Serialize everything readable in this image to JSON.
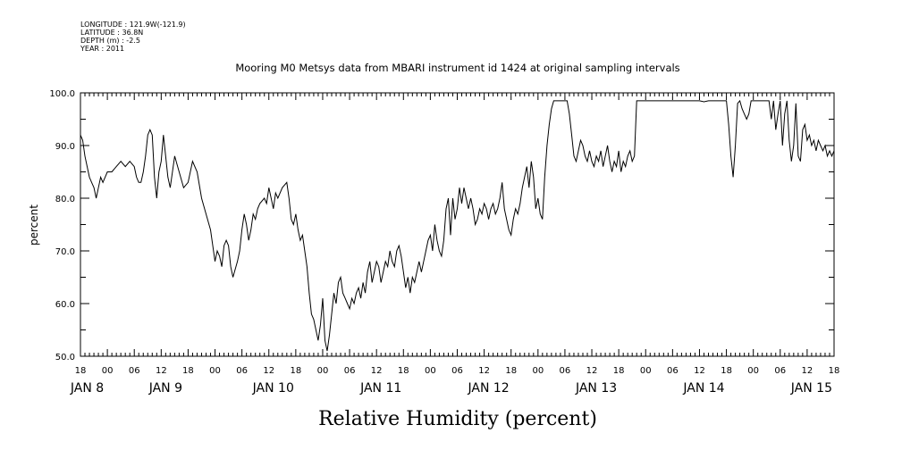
{
  "metadata": {
    "longitude": "LONGITUDE : 121.9W(-121.9)",
    "latitude": "LATITUDE : 36.8N",
    "depth": "DEPTH (m) : -2.5",
    "year": "YEAR : 2011"
  },
  "chart_data": {
    "type": "line",
    "title": "Mooring M0 Metsys data from MBARI instrument id 1424 at original sampling intervals",
    "footer_title": "Relative Humidity (percent)",
    "ylabel": "percent",
    "ylim": [
      50,
      100
    ],
    "y_ticks": [
      50,
      60,
      70,
      80,
      90,
      100
    ],
    "x_range_hours": [
      0,
      168
    ],
    "x_tick_labels": [
      {
        "t": 0,
        "label": "18"
      },
      {
        "t": 6,
        "label": "00"
      },
      {
        "t": 12,
        "label": "06"
      },
      {
        "t": 18,
        "label": "12"
      },
      {
        "t": 24,
        "label": "18"
      },
      {
        "t": 30,
        "label": "00"
      },
      {
        "t": 36,
        "label": "06"
      },
      {
        "t": 42,
        "label": "12"
      },
      {
        "t": 48,
        "label": "18"
      },
      {
        "t": 54,
        "label": "00"
      },
      {
        "t": 60,
        "label": "06"
      },
      {
        "t": 66,
        "label": "12"
      },
      {
        "t": 72,
        "label": "18"
      },
      {
        "t": 78,
        "label": "00"
      },
      {
        "t": 84,
        "label": "06"
      },
      {
        "t": 90,
        "label": "12"
      },
      {
        "t": 96,
        "label": "18"
      },
      {
        "t": 102,
        "label": "00"
      },
      {
        "t": 108,
        "label": "06"
      },
      {
        "t": 114,
        "label": "12"
      },
      {
        "t": 120,
        "label": "18"
      },
      {
        "t": 126,
        "label": "00"
      },
      {
        "t": 132,
        "label": "06"
      },
      {
        "t": 138,
        "label": "12"
      },
      {
        "t": 144,
        "label": "18"
      },
      {
        "t": 150,
        "label": "00"
      },
      {
        "t": 156,
        "label": "06"
      },
      {
        "t": 162,
        "label": "12"
      },
      {
        "t": 168,
        "label": "18"
      }
    ],
    "date_labels": [
      {
        "t": 1.5,
        "label": "JAN  8"
      },
      {
        "t": 19,
        "label": "JAN  9"
      },
      {
        "t": 43,
        "label": "JAN 10"
      },
      {
        "t": 67,
        "label": "JAN 11"
      },
      {
        "t": 91,
        "label": "JAN 12"
      },
      {
        "t": 115,
        "label": "JAN 13"
      },
      {
        "t": 139,
        "label": "JAN 14"
      },
      {
        "t": 163,
        "label": "JAN 15"
      }
    ],
    "series": [
      {
        "points": [
          [
            0,
            92
          ],
          [
            0.5,
            91
          ],
          [
            1,
            88
          ],
          [
            1.5,
            86
          ],
          [
            2,
            84
          ],
          [
            2.5,
            83
          ],
          [
            3,
            82
          ],
          [
            3.5,
            80
          ],
          [
            4,
            82
          ],
          [
            4.5,
            84
          ],
          [
            5,
            83
          ],
          [
            5.5,
            84
          ],
          [
            6,
            85
          ],
          [
            7,
            85
          ],
          [
            8,
            86
          ],
          [
            9,
            87
          ],
          [
            10,
            86
          ],
          [
            11,
            87
          ],
          [
            12,
            86
          ],
          [
            12.5,
            84
          ],
          [
            13,
            83
          ],
          [
            13.5,
            83
          ],
          [
            14,
            85
          ],
          [
            14.5,
            88
          ],
          [
            15,
            92
          ],
          [
            15.5,
            93
          ],
          [
            16,
            92
          ],
          [
            16.5,
            84
          ],
          [
            17,
            80
          ],
          [
            17.5,
            85
          ],
          [
            18,
            87
          ],
          [
            18.5,
            92
          ],
          [
            19,
            88
          ],
          [
            19.5,
            84
          ],
          [
            20,
            82
          ],
          [
            21,
            88
          ],
          [
            22,
            85
          ],
          [
            23,
            82
          ],
          [
            24,
            83
          ],
          [
            25,
            87
          ],
          [
            26,
            85
          ],
          [
            27,
            80
          ],
          [
            28,
            77
          ],
          [
            29,
            74
          ],
          [
            29.5,
            71
          ],
          [
            30,
            68
          ],
          [
            30.5,
            70
          ],
          [
            31,
            69
          ],
          [
            31.5,
            67
          ],
          [
            32,
            71
          ],
          [
            32.5,
            72
          ],
          [
            33,
            71
          ],
          [
            33.5,
            67
          ],
          [
            34,
            65
          ],
          [
            35,
            68
          ],
          [
            35.5,
            70
          ],
          [
            36,
            74
          ],
          [
            36.5,
            77
          ],
          [
            37,
            75
          ],
          [
            37.5,
            72
          ],
          [
            38,
            74
          ],
          [
            38.5,
            77
          ],
          [
            39,
            76
          ],
          [
            39.5,
            78
          ],
          [
            40,
            79
          ],
          [
            41,
            80
          ],
          [
            41.5,
            79
          ],
          [
            42,
            82
          ],
          [
            42.5,
            80
          ],
          [
            43,
            78
          ],
          [
            43.5,
            81
          ],
          [
            44,
            80
          ],
          [
            45,
            82
          ],
          [
            46,
            83
          ],
          [
            46.5,
            80
          ],
          [
            47,
            76
          ],
          [
            47.5,
            75
          ],
          [
            48,
            77
          ],
          [
            48.5,
            74
          ],
          [
            49,
            72
          ],
          [
            49.5,
            73
          ],
          [
            50,
            70
          ],
          [
            50.5,
            67
          ],
          [
            51,
            62
          ],
          [
            51.5,
            58
          ],
          [
            52,
            57
          ],
          [
            52.5,
            55
          ],
          [
            53,
            53
          ],
          [
            53.5,
            56
          ],
          [
            54,
            61
          ],
          [
            54.5,
            53
          ],
          [
            55,
            51
          ],
          [
            55.5,
            54
          ],
          [
            56,
            58
          ],
          [
            56.5,
            62
          ],
          [
            57,
            60
          ],
          [
            57.5,
            64
          ],
          [
            58,
            65
          ],
          [
            58.5,
            62
          ],
          [
            59,
            61
          ],
          [
            59.5,
            60
          ],
          [
            60,
            59
          ],
          [
            60.5,
            61
          ],
          [
            61,
            60
          ],
          [
            61.5,
            62
          ],
          [
            62,
            63
          ],
          [
            62.5,
            61
          ],
          [
            63,
            64
          ],
          [
            63.5,
            62
          ],
          [
            64,
            66
          ],
          [
            64.5,
            68
          ],
          [
            65,
            64
          ],
          [
            65.5,
            66
          ],
          [
            66,
            68
          ],
          [
            66.5,
            67
          ],
          [
            67,
            64
          ],
          [
            67.5,
            66
          ],
          [
            68,
            68
          ],
          [
            68.5,
            67
          ],
          [
            69,
            70
          ],
          [
            69.5,
            68
          ],
          [
            70,
            67
          ],
          [
            70.5,
            70
          ],
          [
            71,
            71
          ],
          [
            71.5,
            69
          ],
          [
            72,
            66
          ],
          [
            72.5,
            63
          ],
          [
            73,
            65
          ],
          [
            73.5,
            62
          ],
          [
            74,
            65
          ],
          [
            74.5,
            64
          ],
          [
            75,
            66
          ],
          [
            75.5,
            68
          ],
          [
            76,
            66
          ],
          [
            76.5,
            68
          ],
          [
            77,
            70
          ],
          [
            77.5,
            72
          ],
          [
            78,
            73
          ],
          [
            78.5,
            70
          ],
          [
            79,
            75
          ],
          [
            79.5,
            72
          ],
          [
            80,
            70
          ],
          [
            80.5,
            69
          ],
          [
            81,
            72
          ],
          [
            81.5,
            78
          ],
          [
            82,
            80
          ],
          [
            82.5,
            73
          ],
          [
            83,
            80
          ],
          [
            83.5,
            76
          ],
          [
            84,
            78
          ],
          [
            84.5,
            82
          ],
          [
            85,
            79
          ],
          [
            85.5,
            82
          ],
          [
            86,
            80
          ],
          [
            86.5,
            78
          ],
          [
            87,
            80
          ],
          [
            87.5,
            78
          ],
          [
            88,
            75
          ],
          [
            88.5,
            76
          ],
          [
            89,
            78
          ],
          [
            89.5,
            77
          ],
          [
            90,
            79
          ],
          [
            90.5,
            78
          ],
          [
            91,
            76
          ],
          [
            91.5,
            78
          ],
          [
            92,
            79
          ],
          [
            92.5,
            77
          ],
          [
            93,
            78
          ],
          [
            93.5,
            80
          ],
          [
            94,
            83
          ],
          [
            94.5,
            78
          ],
          [
            95,
            76
          ],
          [
            95.5,
            74
          ],
          [
            96,
            73
          ],
          [
            96.5,
            76
          ],
          [
            97,
            78
          ],
          [
            97.5,
            77
          ],
          [
            98,
            79
          ],
          [
            98.5,
            82
          ],
          [
            99,
            84
          ],
          [
            99.5,
            86
          ],
          [
            100,
            82
          ],
          [
            100.5,
            87
          ],
          [
            101,
            84
          ],
          [
            101.5,
            78
          ],
          [
            102,
            80
          ],
          [
            102.5,
            77
          ],
          [
            103,
            76
          ],
          [
            103.5,
            84
          ],
          [
            104,
            90
          ],
          [
            104.5,
            94
          ],
          [
            105,
            97
          ],
          [
            105.5,
            98.5
          ],
          [
            106,
            98.5
          ],
          [
            107,
            98.5
          ],
          [
            108,
            98.5
          ],
          [
            108.5,
            98.5
          ],
          [
            109,
            96
          ],
          [
            109.5,
            92
          ],
          [
            110,
            88
          ],
          [
            110.5,
            87
          ],
          [
            111,
            89
          ],
          [
            111.5,
            91
          ],
          [
            112,
            90
          ],
          [
            112.5,
            88
          ],
          [
            113,
            87
          ],
          [
            113.5,
            89
          ],
          [
            114,
            87
          ],
          [
            114.5,
            86
          ],
          [
            115,
            88
          ],
          [
            115.5,
            87
          ],
          [
            116,
            89
          ],
          [
            116.5,
            86
          ],
          [
            117,
            88
          ],
          [
            117.5,
            90
          ],
          [
            118,
            87
          ],
          [
            118.5,
            85
          ],
          [
            119,
            87
          ],
          [
            119.5,
            86
          ],
          [
            120,
            89
          ],
          [
            120.5,
            85
          ],
          [
            121,
            87
          ],
          [
            121.5,
            86
          ],
          [
            122,
            88
          ],
          [
            122.5,
            89
          ],
          [
            123,
            87
          ],
          [
            123.5,
            88
          ],
          [
            124,
            98.5
          ],
          [
            125,
            98.5
          ],
          [
            130,
            98.5
          ],
          [
            135,
            98.5
          ],
          [
            138,
            98.5
          ],
          [
            139,
            98.3
          ],
          [
            140,
            98.5
          ],
          [
            143,
            98.5
          ],
          [
            144,
            98.5
          ],
          [
            144.5,
            94
          ],
          [
            145,
            88
          ],
          [
            145.5,
            84
          ],
          [
            146,
            90
          ],
          [
            146.5,
            98
          ],
          [
            147,
            98.5
          ],
          [
            147.5,
            97
          ],
          [
            148,
            96
          ],
          [
            148.5,
            95
          ],
          [
            149,
            96
          ],
          [
            149.5,
            98.5
          ],
          [
            151,
            98.5
          ],
          [
            152,
            98.5
          ],
          [
            152.5,
            98.5
          ],
          [
            153,
            98.5
          ],
          [
            153.5,
            98.5
          ],
          [
            154,
            95
          ],
          [
            154.5,
            98.5
          ],
          [
            155,
            93
          ],
          [
            155.5,
            96
          ],
          [
            156,
            98.5
          ],
          [
            156.5,
            90
          ],
          [
            157,
            96
          ],
          [
            157.5,
            98.5
          ],
          [
            158,
            91
          ],
          [
            158.5,
            87
          ],
          [
            159,
            90
          ],
          [
            159.5,
            98
          ],
          [
            160,
            88
          ],
          [
            160.5,
            87
          ],
          [
            161,
            93
          ],
          [
            161.5,
            94
          ],
          [
            162,
            91
          ],
          [
            162.5,
            92
          ],
          [
            163,
            90
          ],
          [
            163.5,
            91
          ],
          [
            164,
            89
          ],
          [
            164.5,
            91
          ],
          [
            165,
            90
          ],
          [
            165.5,
            89
          ],
          [
            166,
            90
          ],
          [
            166.5,
            88
          ],
          [
            167,
            89
          ],
          [
            167.5,
            88
          ],
          [
            168,
            89
          ]
        ]
      }
    ]
  }
}
